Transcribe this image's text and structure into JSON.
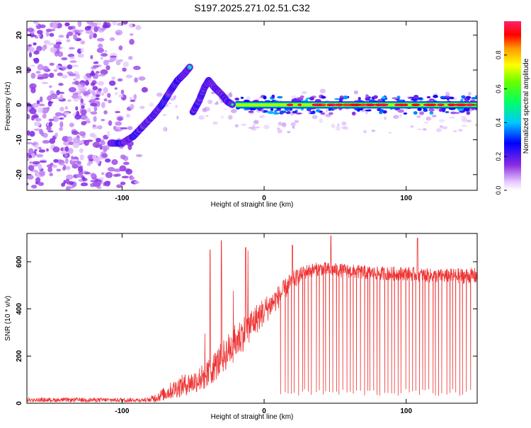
{
  "figure_title": "S197.2025.271.02.51.C32",
  "colors": {
    "snr_line": "#ee3333",
    "axis": "#000000",
    "background": "#ffffff"
  },
  "chart_data": [
    {
      "type": "heatmap",
      "title": "S197.2025.271.02.51.C32",
      "xlabel": "Height of straight line (km)",
      "ylabel": "Frequency (Hz)",
      "xlim": [
        -167,
        150
      ],
      "ylim": [
        -24.5,
        24
      ],
      "x_ticks": [
        -100,
        0,
        100
      ],
      "x_tick_labels": [
        "-100",
        "0",
        "100"
      ],
      "y_ticks": [
        -20,
        -10,
        0,
        10,
        20
      ],
      "y_tick_labels": [
        "-20",
        "-10",
        "0",
        "10",
        "20"
      ],
      "colorbar": {
        "label": "Normalized spectral amplitude",
        "range": [
          0,
          1
        ],
        "ticks": [
          0.0,
          0.2,
          0.4,
          0.6,
          0.8
        ],
        "tick_labels": [
          "0.0",
          "0.2",
          "0.4",
          "0.6",
          "0.8"
        ]
      },
      "features": [
        {
          "name": "noise",
          "x_range": [
            -167,
            -80
          ],
          "freq_range": [
            -24,
            24
          ],
          "amplitude": 0.1
        },
        {
          "name": "rising-segment",
          "points": [
            [
              -108,
              -11
            ],
            [
              -100,
              -11
            ],
            [
              -92,
              -9
            ],
            [
              -85,
              -6
            ],
            [
              -78,
              -3
            ],
            [
              -72,
              0
            ],
            [
              -66,
              4
            ],
            [
              -61,
              7
            ],
            [
              -56,
              9
            ],
            [
              -52,
              11
            ]
          ],
          "amplitude": 0.3
        },
        {
          "name": "second-segment",
          "points": [
            [
              -50,
              -2
            ],
            [
              -46,
              1
            ],
            [
              -42,
              5
            ],
            [
              -39,
              7
            ],
            [
              -35,
              5
            ],
            [
              -30,
              3
            ],
            [
              -26,
              1
            ],
            [
              -22,
              0
            ]
          ],
          "amplitude": 0.3
        },
        {
          "name": "main-line",
          "x_range": [
            -20,
            150
          ],
          "freq": 0,
          "amplitude": 0.9
        }
      ]
    },
    {
      "type": "line",
      "xlabel": "Height of straight line (km)",
      "ylabel": "SNR (10 * v/v)",
      "xlim": [
        -167,
        150
      ],
      "ylim": [
        0,
        720
      ],
      "x_ticks": [
        -100,
        0,
        100
      ],
      "x_tick_labels": [
        "-100",
        "0",
        "100"
      ],
      "y_ticks": [
        0,
        200,
        400,
        600
      ],
      "y_tick_labels": [
        "0",
        "200",
        "400",
        "600"
      ],
      "envelope": {
        "x": [
          -167,
          -80,
          -70,
          -60,
          -50,
          -40,
          -30,
          -20,
          -10,
          0,
          10,
          20,
          30,
          40,
          60,
          80,
          100,
          120,
          150
        ],
        "mean": [
          15,
          15,
          40,
          70,
          90,
          120,
          190,
          260,
          330,
          390,
          450,
          520,
          560,
          570,
          560,
          550,
          550,
          540,
          540
        ],
        "noise": [
          10,
          15,
          30,
          45,
          50,
          60,
          70,
          80,
          70,
          60,
          50,
          40,
          30,
          30,
          30,
          30,
          30,
          30,
          35
        ]
      },
      "spikes": [
        {
          "x": -38,
          "y": 650
        },
        {
          "x": -30,
          "y": 690
        },
        {
          "x": -13,
          "y": 660
        },
        {
          "x": 20,
          "y": 670
        },
        {
          "x": 47,
          "y": 710
        },
        {
          "x": 108,
          "y": 700
        }
      ],
      "dropouts": {
        "x_range": [
          12,
          145
        ],
        "count": 56,
        "min_value": 30,
        "max_value": 60
      }
    }
  ]
}
